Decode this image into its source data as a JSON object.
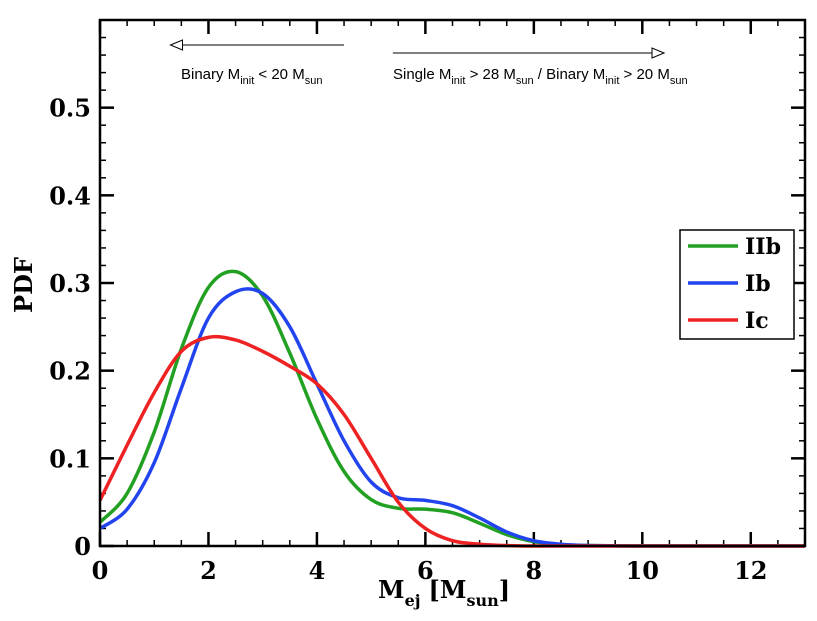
{
  "chart_data": {
    "type": "line",
    "title": "",
    "xlabel": {
      "main": "M",
      "sub": "ej",
      "bracket_open": "[M",
      "unit_sub": "sun",
      "bracket_close": "]"
    },
    "ylabel": "PDF",
    "xlim": [
      0,
      13
    ],
    "ylim": [
      0,
      0.6
    ],
    "x_ticks": [
      0,
      2,
      4,
      6,
      8,
      10,
      12
    ],
    "x_tick_labels": [
      "0",
      "2",
      "4",
      "6",
      "8",
      "10",
      "12"
    ],
    "y_ticks": [
      0,
      0.1,
      0.2,
      0.3,
      0.4,
      0.5
    ],
    "y_tick_labels": [
      "0",
      "0.1",
      "0.2",
      "0.3",
      "0.4",
      "0.5"
    ],
    "legend_position": "right",
    "series": [
      {
        "name": "IIb",
        "color": "#22a022",
        "x": [
          0,
          0.5,
          1.0,
          1.5,
          2.0,
          2.5,
          3.0,
          3.5,
          4.0,
          4.5,
          5.0,
          5.5,
          6.0,
          6.5,
          7.0,
          7.5,
          8.0,
          8.5,
          9.0,
          10.0,
          11.0,
          12.0,
          13.0
        ],
        "y": [
          0.027,
          0.06,
          0.13,
          0.225,
          0.295,
          0.313,
          0.285,
          0.22,
          0.145,
          0.085,
          0.053,
          0.043,
          0.042,
          0.038,
          0.026,
          0.013,
          0.005,
          0.0015,
          0.0005,
          0.0,
          0.0,
          0.0,
          0.0
        ]
      },
      {
        "name": "Ib",
        "color": "#2244ee",
        "x": [
          0,
          0.5,
          1.0,
          1.5,
          2.0,
          2.5,
          3.0,
          3.5,
          4.0,
          4.5,
          5.0,
          5.5,
          6.0,
          6.5,
          7.0,
          7.5,
          8.0,
          8.5,
          9.0,
          10.0,
          11.0,
          12.0,
          13.0
        ],
        "y": [
          0.02,
          0.042,
          0.095,
          0.18,
          0.26,
          0.29,
          0.288,
          0.25,
          0.185,
          0.12,
          0.073,
          0.055,
          0.052,
          0.046,
          0.032,
          0.016,
          0.006,
          0.002,
          0.0005,
          0.0,
          0.0,
          0.0,
          0.0
        ]
      },
      {
        "name": "Ic",
        "color": "#ee2222",
        "x": [
          0,
          0.5,
          1.0,
          1.5,
          2.0,
          2.5,
          3.0,
          3.5,
          4.0,
          4.5,
          5.0,
          5.5,
          6.0,
          6.5,
          7.0,
          7.5,
          8.0,
          9.0,
          10.0,
          11.0,
          12.0,
          13.0
        ],
        "y": [
          0.052,
          0.115,
          0.175,
          0.222,
          0.238,
          0.235,
          0.222,
          0.205,
          0.185,
          0.15,
          0.1,
          0.05,
          0.02,
          0.006,
          0.002,
          0.0005,
          0.0,
          0.0,
          0.0,
          0.0,
          0.0,
          0.0
        ]
      }
    ],
    "annotations": {
      "left": {
        "t1": "Binary M",
        "s1": "init",
        "t2": " < 20 M",
        "s2": "sun",
        "x_from": 4.5,
        "x_to": 1.3,
        "direction": "left"
      },
      "right": {
        "t1": "Single M",
        "s1": "init",
        "t2": " > 28 M",
        "s2": "sun",
        "t3": " / Binary  M",
        "s3": "init",
        "t4": " > 20 M",
        "s4": "sun",
        "x_from": 5.4,
        "x_to": 10.4,
        "direction": "right"
      }
    }
  }
}
